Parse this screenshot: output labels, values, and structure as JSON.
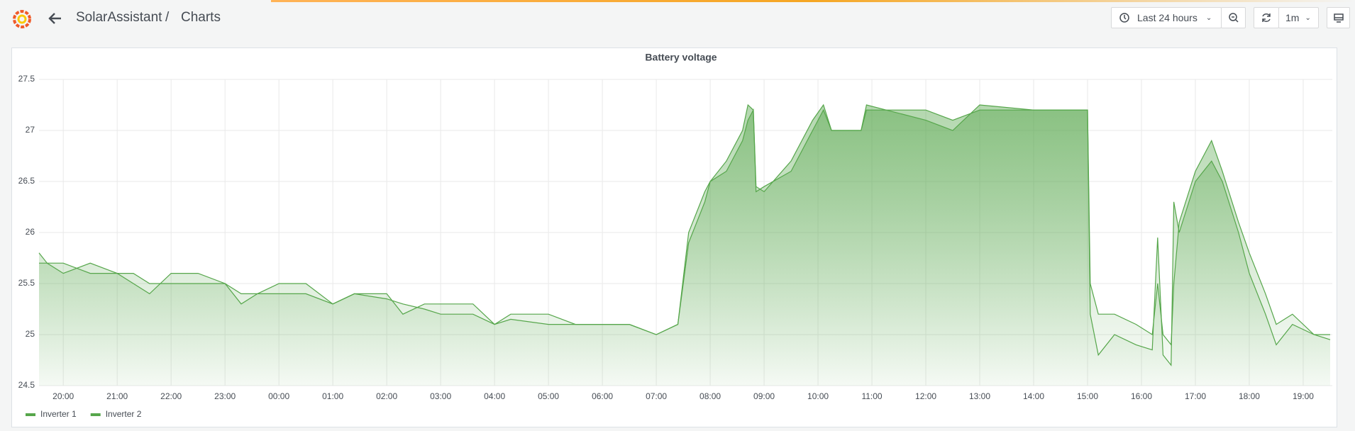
{
  "header": {
    "folder": "SolarAssistant",
    "separator": "/",
    "title": "Charts",
    "time_range": "Last 24 hours",
    "refresh_interval": "1m"
  },
  "chart_data": {
    "type": "line",
    "title": "Battery voltage",
    "x": [
      -0.45,
      -0.3,
      0,
      0.5,
      1.0,
      1.3,
      1.6,
      2.0,
      2.5,
      3.0,
      3.3,
      3.6,
      4.0,
      4.5,
      5.0,
      5.4,
      6.0,
      6.3,
      6.7,
      7.0,
      7.6,
      8.0,
      8.3,
      9.0,
      9.5,
      10.0,
      10.5,
      11.0,
      11.4,
      11.6,
      11.9,
      12.0,
      12.3,
      12.6,
      12.7,
      12.8,
      12.85,
      13.0,
      13.5,
      13.9,
      14.1,
      14.25,
      14.8,
      14.9,
      16.0,
      16.5,
      17.0,
      18.0,
      19.0,
      19.05,
      19.2,
      19.5,
      19.9,
      20.2,
      20.3,
      20.4,
      20.55,
      20.6,
      20.7,
      21.0,
      21.3,
      21.5,
      21.8,
      22.0,
      22.3,
      22.5,
      22.8,
      23.2,
      23.5
    ],
    "series": [
      {
        "name": "Inverter 1",
        "color": "#56a64b",
        "values": [
          25.8,
          25.7,
          25.7,
          25.6,
          25.6,
          25.5,
          25.4,
          25.6,
          25.6,
          25.5,
          25.3,
          25.4,
          25.5,
          25.5,
          25.3,
          25.4,
          25.4,
          25.2,
          25.3,
          25.3,
          25.3,
          25.1,
          25.2,
          25.2,
          25.1,
          25.1,
          25.1,
          25.0,
          25.1,
          26.0,
          26.4,
          26.5,
          26.7,
          27.0,
          27.25,
          27.2,
          26.45,
          26.4,
          26.7,
          27.1,
          27.25,
          27.0,
          27.0,
          27.2,
          27.2,
          27.1,
          27.2,
          27.2,
          27.2,
          25.2,
          24.8,
          25.0,
          24.9,
          24.85,
          25.95,
          24.8,
          24.7,
          26.3,
          26.0,
          26.5,
          26.7,
          26.5,
          26.0,
          25.6,
          25.2,
          24.9,
          25.1,
          25.0,
          24.95
        ]
      },
      {
        "name": "Inverter 2",
        "color": "#56a64b",
        "values": [
          25.7,
          25.7,
          25.6,
          25.7,
          25.6,
          25.6,
          25.5,
          25.5,
          25.5,
          25.5,
          25.4,
          25.4,
          25.4,
          25.4,
          25.3,
          25.4,
          25.35,
          25.3,
          25.25,
          25.2,
          25.2,
          25.1,
          25.15,
          25.1,
          25.1,
          25.1,
          25.1,
          25.0,
          25.1,
          25.9,
          26.3,
          26.5,
          26.6,
          26.9,
          27.1,
          27.2,
          26.4,
          26.45,
          26.6,
          27.0,
          27.2,
          27.0,
          27.0,
          27.25,
          27.1,
          27.0,
          27.25,
          27.2,
          27.2,
          25.5,
          25.2,
          25.2,
          25.1,
          25.0,
          25.5,
          25.0,
          24.9,
          25.5,
          26.1,
          26.6,
          26.9,
          26.6,
          26.1,
          25.8,
          25.4,
          25.1,
          25.2,
          25.0,
          25.0
        ]
      }
    ],
    "xlim": [
      -0.45,
      23.54
    ],
    "xticks": [
      {
        "value": 0,
        "label": "20:00"
      },
      {
        "value": 1,
        "label": "21:00"
      },
      {
        "value": 2,
        "label": "22:00"
      },
      {
        "value": 3,
        "label": "23:00"
      },
      {
        "value": 4,
        "label": "00:00"
      },
      {
        "value": 5,
        "label": "01:00"
      },
      {
        "value": 6,
        "label": "02:00"
      },
      {
        "value": 7,
        "label": "03:00"
      },
      {
        "value": 8,
        "label": "04:00"
      },
      {
        "value": 9,
        "label": "05:00"
      },
      {
        "value": 10,
        "label": "06:00"
      },
      {
        "value": 11,
        "label": "07:00"
      },
      {
        "value": 12,
        "label": "08:00"
      },
      {
        "value": 13,
        "label": "09:00"
      },
      {
        "value": 14,
        "label": "10:00"
      },
      {
        "value": 15,
        "label": "11:00"
      },
      {
        "value": 16,
        "label": "12:00"
      },
      {
        "value": 17,
        "label": "13:00"
      },
      {
        "value": 18,
        "label": "14:00"
      },
      {
        "value": 19,
        "label": "15:00"
      },
      {
        "value": 20,
        "label": "16:00"
      },
      {
        "value": 21,
        "label": "17:00"
      },
      {
        "value": 22,
        "label": "18:00"
      },
      {
        "value": 23,
        "label": "19:00"
      }
    ],
    "ylim": [
      24.5,
      27.5
    ],
    "yticks": [
      24.5,
      25,
      25.5,
      26,
      26.5,
      27,
      27.5
    ],
    "grid": true,
    "fill": true,
    "legend": "bottom-left"
  }
}
